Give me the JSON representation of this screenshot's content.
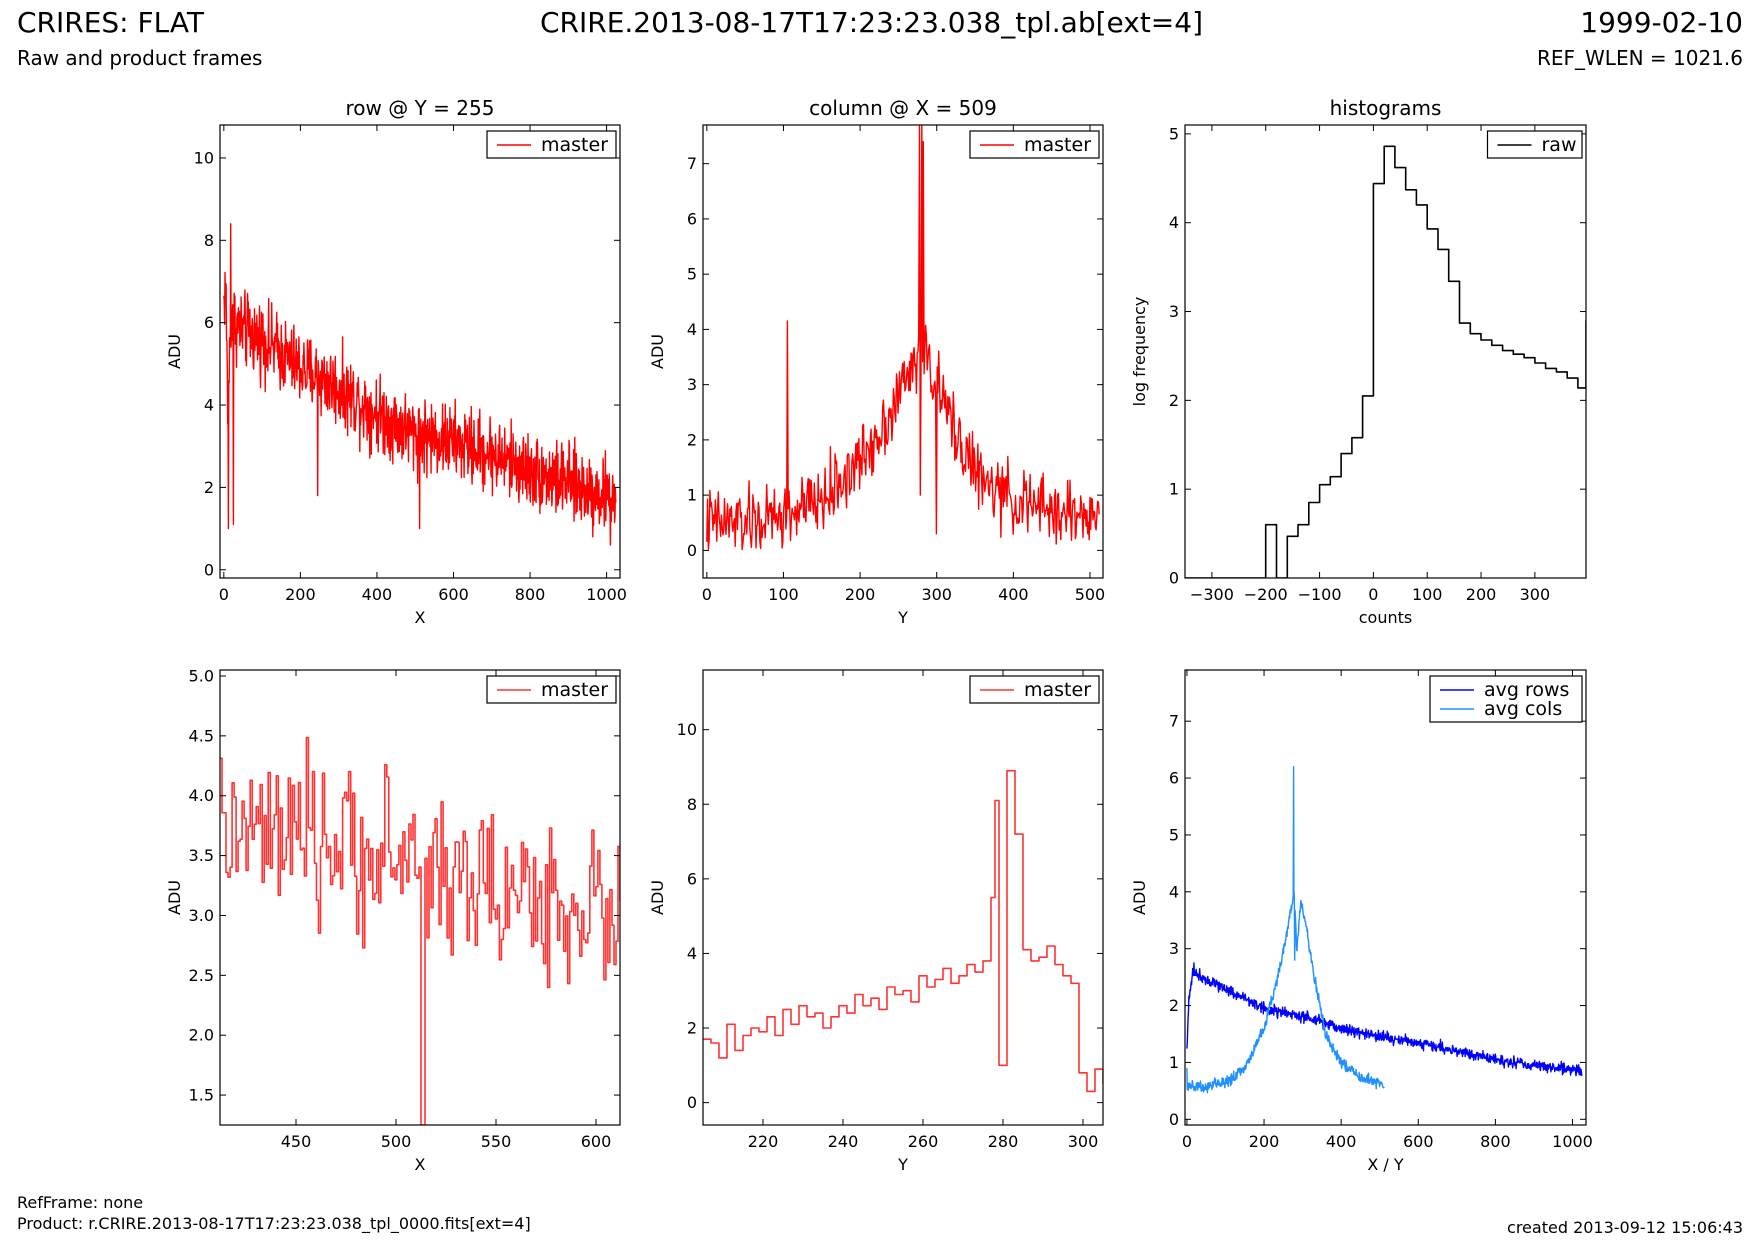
{
  "header": {
    "title": "CRIRES: FLAT",
    "subtitle": "Raw and product frames",
    "file": "CRIRE.2013-08-17T17:23:23.038_tpl.ab[ext=4]",
    "date": "1999-02-10",
    "ref_wlen": "REF_WLEN = 1021.6"
  },
  "footer": {
    "ref_frame": "RefFrame: none",
    "product": "Product: r.CRIRE.2013-08-17T17:23:23.038_tpl_0000.fits[ext=4]",
    "created": "created 2013-09-12 15:06:43"
  },
  "colors": {
    "master": "#ff0000",
    "raw": "#000000",
    "avg_rows": "#0000ff",
    "avg_cols": "#1e90ff"
  },
  "chart_data": [
    {
      "id": "row-full",
      "type": "line",
      "title": "row @ Y = 255",
      "xlabel": "X",
      "ylabel": "ADU",
      "xlim": [
        -10,
        1035
      ],
      "ylim": [
        -0.2,
        10.8
      ],
      "xticks": [
        0,
        200,
        400,
        600,
        800,
        1000
      ],
      "yticks": [
        0,
        2,
        4,
        6,
        8,
        10
      ],
      "legend": "upper right",
      "series": [
        {
          "name": "master",
          "color": "#ff0000",
          "step": false,
          "profile": [
            [
              0,
              6.5
            ],
            [
              5,
              7.0
            ],
            [
              10,
              4.0
            ],
            [
              20,
              6.3
            ],
            [
              30,
              6.0
            ],
            [
              50,
              5.8
            ],
            [
              100,
              5.6
            ],
            [
              200,
              4.9
            ],
            [
              300,
              4.4
            ],
            [
              400,
              3.8
            ],
            [
              500,
              3.3
            ],
            [
              600,
              3.1
            ],
            [
              700,
              2.8
            ],
            [
              800,
              2.4
            ],
            [
              900,
              2.1
            ],
            [
              1000,
              1.8
            ],
            [
              1024,
              1.7
            ]
          ],
          "noise": 0.45,
          "n": 1024,
          "spikes": [
            [
              18,
              8.4
            ],
            [
              25,
              1.1
            ],
            [
              12,
              1.0
            ],
            [
              245,
              1.8
            ],
            [
              512,
              1.0
            ],
            [
              1010,
              0.6
            ]
          ]
        }
      ]
    },
    {
      "id": "col-full",
      "type": "line",
      "title": "column @ X = 509",
      "xlabel": "Y",
      "ylabel": "ADU",
      "xlim": [
        -5,
        517
      ],
      "ylim": [
        -0.5,
        7.7
      ],
      "xticks": [
        0,
        100,
        200,
        300,
        400,
        500
      ],
      "yticks": [
        0,
        1,
        2,
        3,
        4,
        5,
        6,
        7
      ],
      "legend": "upper right",
      "series": [
        {
          "name": "master",
          "color": "#ff0000",
          "step": false,
          "profile": [
            [
              0,
              0.5
            ],
            [
              60,
              0.5
            ],
            [
              100,
              0.6
            ],
            [
              150,
              0.9
            ],
            [
              200,
              1.6
            ],
            [
              240,
              2.5
            ],
            [
              260,
              3.1
            ],
            [
              278,
              3.6
            ],
            [
              290,
              3.4
            ],
            [
              310,
              2.6
            ],
            [
              330,
              2.0
            ],
            [
              360,
              1.2
            ],
            [
              400,
              0.9
            ],
            [
              450,
              0.7
            ],
            [
              512,
              0.6
            ]
          ],
          "noise": 0.3,
          "n": 512,
          "spikes": [
            [
              105,
              4.15
            ],
            [
              278,
              7.7
            ],
            [
              281,
              7.7
            ],
            [
              283,
              7.4
            ],
            [
              279,
              1.0
            ],
            [
              300,
              0.3
            ]
          ]
        }
      ]
    },
    {
      "id": "hist",
      "type": "line",
      "title": "histograms",
      "xlabel": "counts",
      "ylabel": "log frequency",
      "xlim": [
        -350,
        395
      ],
      "ylim": [
        0,
        5.1
      ],
      "xticks": [
        -300,
        -200,
        -100,
        0,
        100,
        200,
        300
      ],
      "yticks": [
        0,
        1,
        2,
        3,
        4,
        5
      ],
      "legend": "upper right",
      "series": [
        {
          "name": "raw",
          "color": "#000000",
          "step": true,
          "x": [
            -350,
            -200,
            -180,
            -160,
            -140,
            -120,
            -100,
            -80,
            -60,
            -40,
            -20,
            0,
            20,
            40,
            60,
            80,
            100,
            120,
            140,
            160,
            180,
            200,
            220,
            240,
            260,
            280,
            300,
            320,
            340,
            360,
            380,
            395
          ],
          "y": [
            0,
            0.6,
            0,
            0.47,
            0.6,
            0.85,
            1.05,
            1.14,
            1.4,
            1.58,
            2.05,
            4.44,
            4.86,
            4.62,
            4.37,
            4.2,
            3.93,
            3.7,
            3.34,
            2.87,
            2.75,
            2.68,
            2.62,
            2.56,
            2.52,
            2.48,
            2.42,
            2.36,
            2.32,
            2.25,
            2.14,
            2.9
          ]
        }
      ]
    },
    {
      "id": "row-zoom",
      "type": "line",
      "title": "",
      "xlabel": "X",
      "ylabel": "ADU",
      "xlim": [
        412,
        612
      ],
      "ylim": [
        1.25,
        5.05
      ],
      "xticks": [
        450,
        500,
        550,
        600
      ],
      "yticks": [
        1.5,
        2.0,
        2.5,
        3.0,
        3.5,
        4.0,
        4.5,
        5.0
      ],
      "legend": "upper right",
      "series": [
        {
          "name": "master",
          "color": "#ff3333",
          "step": true,
          "profile": [
            [
              412,
              3.7
            ],
            [
              450,
              3.6
            ],
            [
              500,
              3.5
            ],
            [
              550,
              3.2
            ],
            [
              612,
              3.0
            ]
          ],
          "noise": 0.33,
          "n": 200,
          "spikes": [
            [
              513,
              1.25
            ],
            [
              514,
              1.25
            ]
          ]
        }
      ]
    },
    {
      "id": "col-zoom",
      "type": "line",
      "title": "",
      "xlabel": "Y",
      "ylabel": "ADU",
      "xlim": [
        205,
        305
      ],
      "ylim": [
        -0.6,
        11.6
      ],
      "xticks": [
        220,
        240,
        260,
        280,
        300
      ],
      "yticks": [
        0,
        2,
        4,
        6,
        8,
        10
      ],
      "legend": "upper right",
      "series": [
        {
          "name": "master",
          "color": "#ff3333",
          "step": true,
          "x": [
            205,
            207,
            209,
            211,
            213,
            215,
            217,
            219,
            221,
            223,
            225,
            227,
            229,
            231,
            233,
            235,
            237,
            239,
            241,
            243,
            245,
            247,
            249,
            251,
            253,
            255,
            257,
            259,
            261,
            263,
            265,
            267,
            269,
            271,
            273,
            275,
            277,
            278,
            279,
            281,
            283,
            285,
            287,
            289,
            291,
            293,
            295,
            297,
            299,
            301,
            303,
            305
          ],
          "y": [
            1.7,
            1.6,
            1.2,
            2.1,
            1.4,
            1.8,
            2.0,
            1.9,
            2.3,
            1.8,
            2.5,
            2.1,
            2.6,
            2.3,
            2.4,
            2.0,
            2.3,
            2.6,
            2.4,
            2.9,
            2.6,
            2.8,
            2.5,
            3.1,
            2.9,
            3.0,
            2.7,
            3.4,
            3.1,
            3.3,
            3.6,
            3.2,
            3.4,
            3.7,
            3.5,
            3.8,
            5.5,
            8.1,
            1.0,
            8.9,
            7.2,
            4.1,
            3.8,
            3.9,
            4.2,
            3.7,
            3.4,
            3.2,
            0.8,
            0.3,
            0.9,
            0.5
          ]
        }
      ]
    },
    {
      "id": "avg",
      "type": "line",
      "title": "",
      "xlabel": "X / Y",
      "ylabel": "ADU",
      "xlim": [
        -5,
        1035
      ],
      "ylim": [
        -0.1,
        7.9
      ],
      "xticks": [
        0,
        200,
        400,
        600,
        800,
        1000
      ],
      "yticks": [
        0,
        1,
        2,
        3,
        4,
        5,
        6,
        7
      ],
      "legend": "upper right",
      "series": [
        {
          "name": "avg rows",
          "color": "#0000ff",
          "step": false,
          "profile": [
            [
              0,
              1.2
            ],
            [
              5,
              2.1
            ],
            [
              15,
              2.6
            ],
            [
              40,
              2.5
            ],
            [
              100,
              2.3
            ],
            [
              200,
              1.95
            ],
            [
              300,
              1.8
            ],
            [
              400,
              1.6
            ],
            [
              500,
              1.45
            ],
            [
              600,
              1.35
            ],
            [
              700,
              1.2
            ],
            [
              800,
              1.05
            ],
            [
              900,
              0.95
            ],
            [
              1024,
              0.85
            ]
          ],
          "noise": 0.05,
          "n": 1024,
          "spikes": [
            [
              18,
              2.75
            ],
            [
              520,
              1.55
            ]
          ]
        },
        {
          "name": "avg cols",
          "color": "#1e90ff",
          "step": false,
          "profile": [
            [
              0,
              0.55
            ],
            [
              100,
              0.65
            ],
            [
              150,
              0.9
            ],
            [
              200,
              1.6
            ],
            [
              240,
              2.6
            ],
            [
              265,
              3.5
            ],
            [
              278,
              4.0
            ],
            [
              285,
              3.0
            ],
            [
              295,
              3.8
            ],
            [
              310,
              3.4
            ],
            [
              330,
              2.5
            ],
            [
              360,
              1.5
            ],
            [
              400,
              1.0
            ],
            [
              450,
              0.75
            ],
            [
              512,
              0.6
            ]
          ],
          "noise": 0.05,
          "n": 512,
          "spikes": [
            [
              0,
              0.9
            ],
            [
              277,
              6.2
            ],
            [
              280,
              2.8
            ]
          ]
        }
      ]
    }
  ]
}
